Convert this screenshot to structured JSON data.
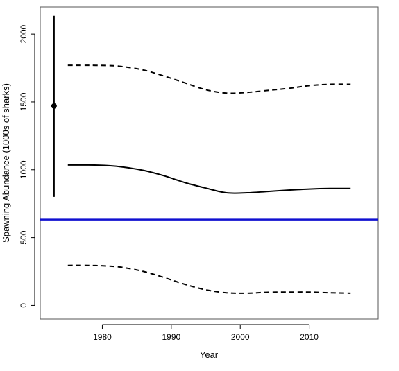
{
  "chart_data": {
    "type": "line",
    "xlabel": "Year",
    "ylabel": "Spawning Abundance (1000s of sharks)",
    "xlim": [
      1971,
      2020
    ],
    "ylim": [
      -100,
      2200
    ],
    "x_ticks": [
      1980,
      1990,
      2000,
      2010
    ],
    "y_ticks": [
      0,
      500,
      1000,
      1500,
      2000
    ],
    "grid": false,
    "colors": {
      "series": "#000000",
      "reference_line": "#1010d0"
    },
    "series": [
      {
        "style": "solid",
        "x": [
          1975,
          1978,
          1981,
          1983,
          1986,
          1989,
          1992,
          1995,
          1998,
          2001,
          2004,
          2007,
          2010,
          2013,
          2016
        ],
        "y": [
          1035,
          1035,
          1030,
          1020,
          995,
          955,
          905,
          865,
          830,
          830,
          840,
          850,
          858,
          862,
          862
        ]
      },
      {
        "style": "dashed",
        "x": [
          1975,
          1978,
          1981,
          1983,
          1986,
          1989,
          1992,
          1995,
          1998,
          2001,
          2004,
          2007,
          2010,
          2013,
          2016
        ],
        "y": [
          1770,
          1770,
          1768,
          1760,
          1735,
          1690,
          1640,
          1590,
          1565,
          1570,
          1585,
          1600,
          1620,
          1630,
          1630
        ]
      },
      {
        "style": "dashed",
        "x": [
          1975,
          1978,
          1981,
          1983,
          1986,
          1989,
          1992,
          1995,
          1998,
          2001,
          2004,
          2007,
          2010,
          2013,
          2016
        ],
        "y": [
          295,
          295,
          290,
          280,
          250,
          205,
          155,
          115,
          93,
          90,
          97,
          98,
          98,
          93,
          90
        ]
      }
    ],
    "point_estimate": {
      "x": 1973,
      "y": 1470,
      "lower": 800,
      "upper": 2135
    },
    "reference_line": {
      "y": 633
    }
  }
}
